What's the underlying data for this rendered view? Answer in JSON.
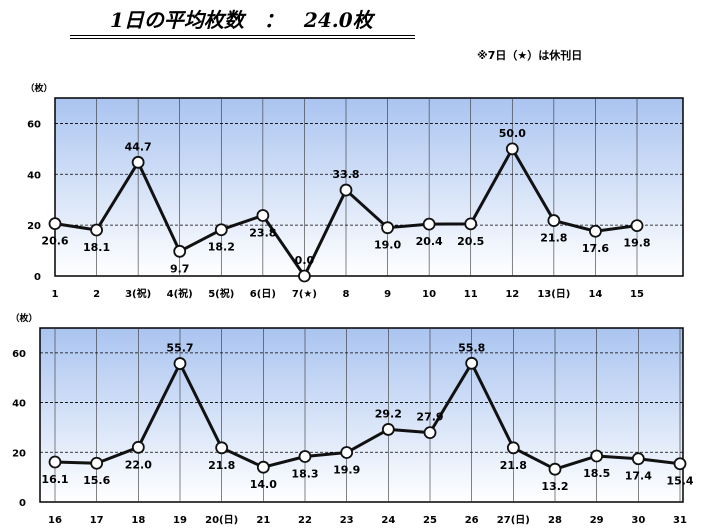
{
  "header": {
    "title": "1日の平均枚数　：　24.0枚",
    "note": "※7日（★）は休刊日"
  },
  "chart_data": [
    {
      "type": "line",
      "ylabel": "（枚）",
      "ylim": [
        0,
        70
      ],
      "yticks": [
        "0",
        "20",
        "40",
        "60"
      ],
      "grid": true,
      "categories": [
        "1",
        "2",
        "3(祝)",
        "4(祝)",
        "5(祝)",
        "6(日)",
        "7(★)",
        "8",
        "9",
        "10",
        "11",
        "12",
        "13(日)",
        "14",
        "15"
      ],
      "values": [
        20.6,
        18.1,
        44.7,
        9.7,
        18.2,
        23.8,
        0.0,
        33.8,
        19.0,
        20.4,
        20.5,
        50.0,
        21.8,
        17.6,
        19.8
      ],
      "labels": [
        "20.6",
        "18.1",
        "44.7",
        "9.7",
        "18.2",
        "23.8",
        "0.0",
        "33.8",
        "19.0",
        "20.4",
        "20.5",
        "50.0",
        "21.8",
        "17.6",
        "19.8"
      ],
      "label_pos": [
        "below",
        "below",
        "above",
        "below",
        "below",
        "below",
        "above",
        "above",
        "below",
        "below",
        "below",
        "above",
        "below",
        "below",
        "below"
      ]
    },
    {
      "type": "line",
      "ylabel": "（枚）",
      "ylim": [
        0,
        70
      ],
      "yticks": [
        "0",
        "20",
        "40",
        "60"
      ],
      "grid": true,
      "categories": [
        "16",
        "17",
        "18",
        "19",
        "20(日)",
        "21",
        "22",
        "23",
        "24",
        "25",
        "26",
        "27(日)",
        "28",
        "29",
        "30",
        "31"
      ],
      "values": [
        16.1,
        15.6,
        22.0,
        55.7,
        21.8,
        14.0,
        18.3,
        19.9,
        29.2,
        27.9,
        55.8,
        21.8,
        13.2,
        18.5,
        17.4,
        15.4
      ],
      "labels": [
        "16.1",
        "15.6",
        "22.0",
        "55.7",
        "21.8",
        "14.0",
        "18.3",
        "19.9",
        "29.2",
        "27.9",
        "55.8",
        "21.8",
        "13.2",
        "18.5",
        "17.4",
        "15.4"
      ],
      "label_pos": [
        "below",
        "below",
        "below",
        "above",
        "below",
        "below",
        "below",
        "below",
        "above",
        "above",
        "above",
        "below",
        "below",
        "below",
        "below",
        "below"
      ]
    }
  ]
}
